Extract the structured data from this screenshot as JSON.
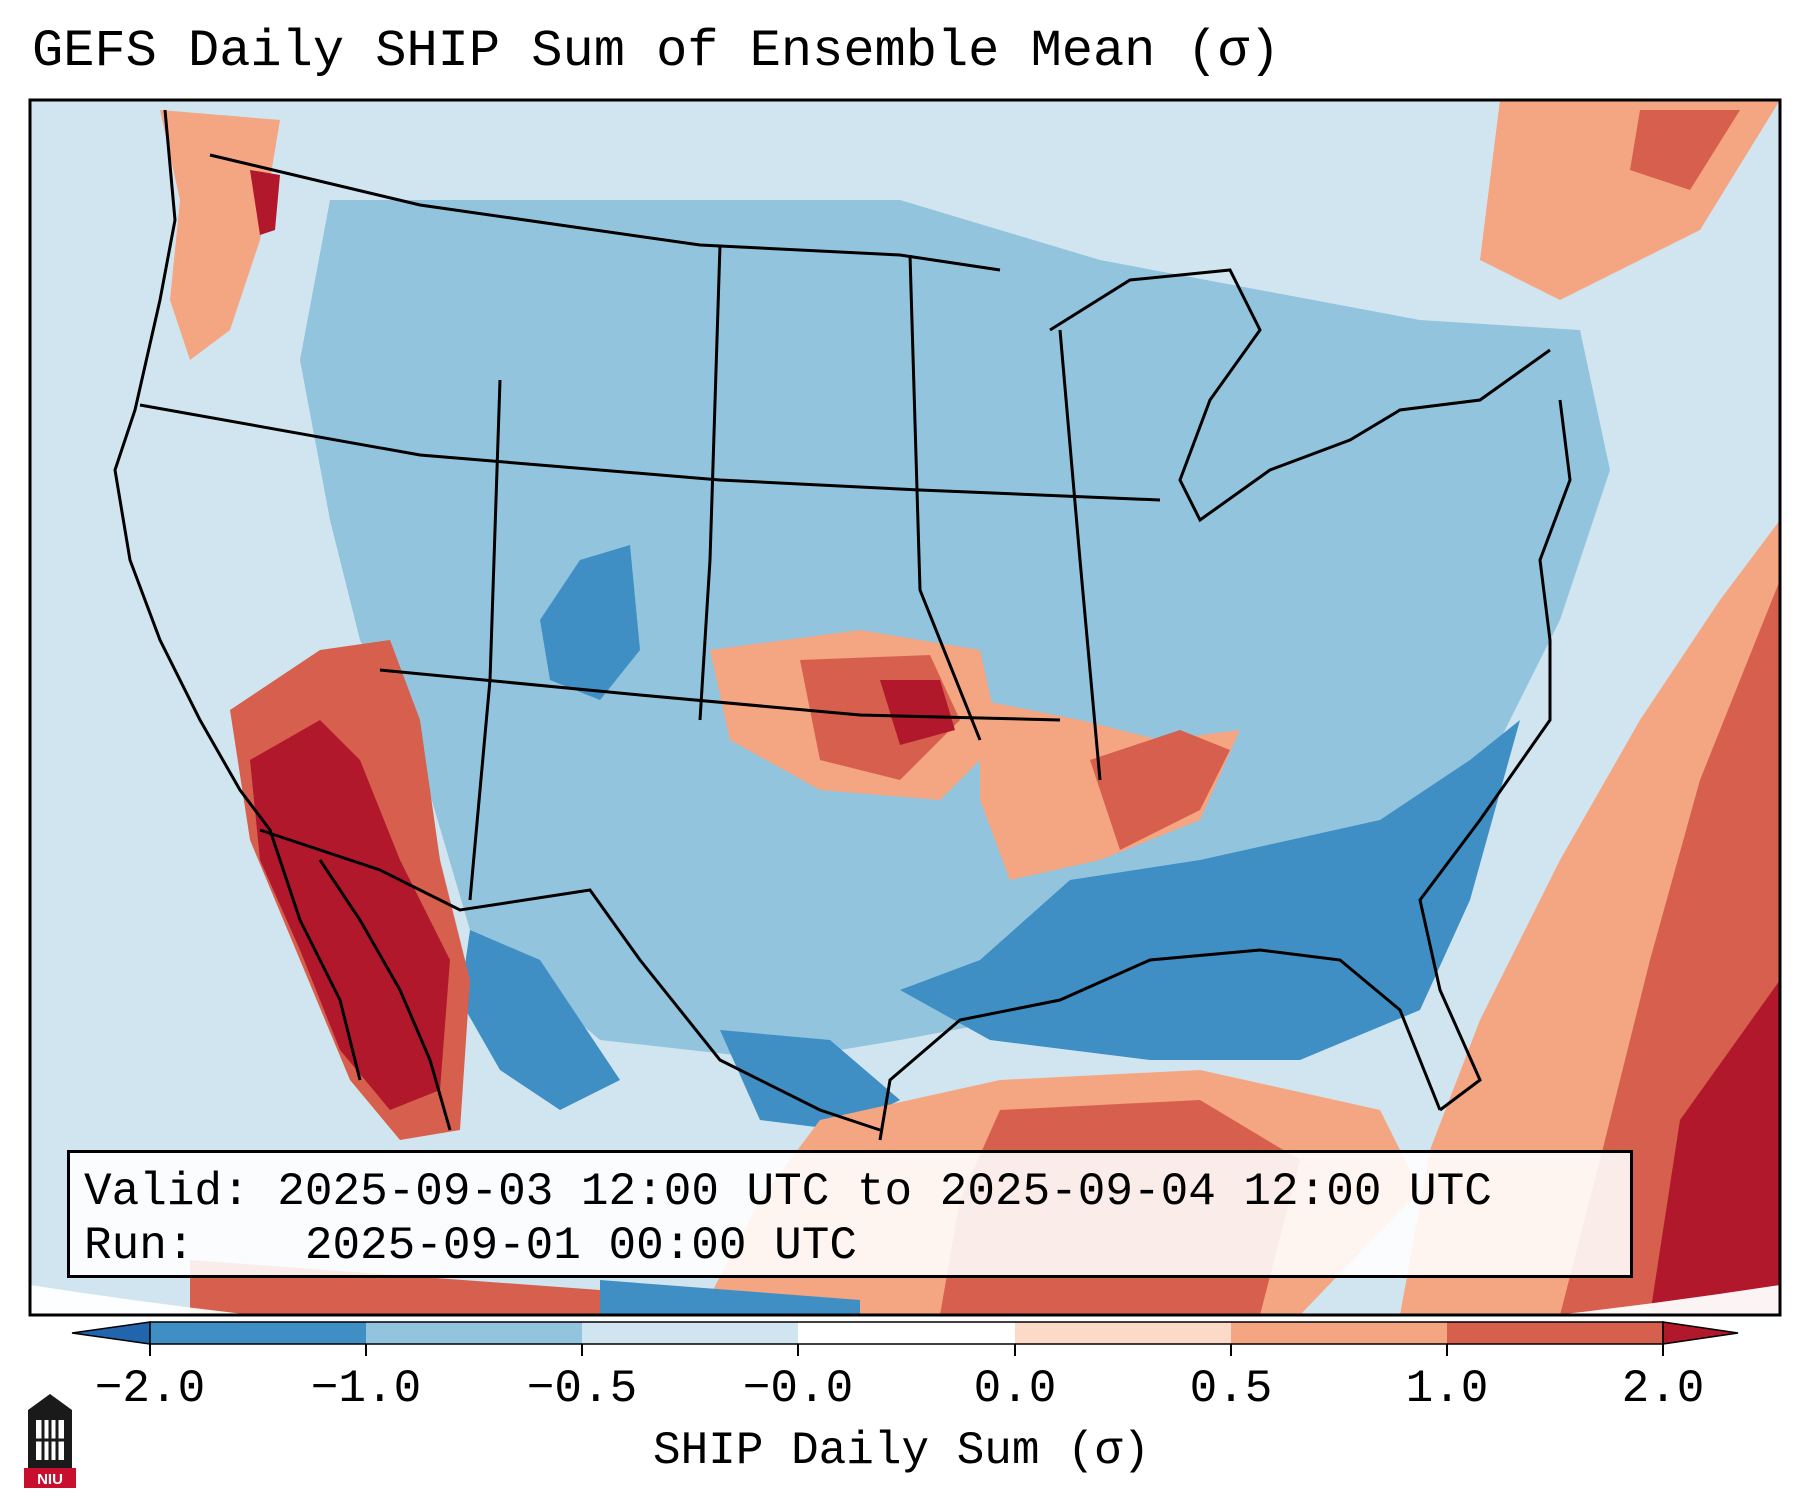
{
  "title": "GEFS Daily SHIP Sum of Ensemble Mean (σ)",
  "info": {
    "valid_label": "Valid:",
    "valid_value": "2025-09-03 12:00 UTC to 2025-09-04 12:00 UTC",
    "run_label": "Run:",
    "run_value": "2025-09-01 00:00 UTC"
  },
  "colorbar": {
    "label": "SHIP Daily Sum (σ)",
    "ticks": [
      "−2.0",
      "−1.0",
      "−0.5",
      "−0.0",
      "0.0",
      "0.5",
      "1.0",
      "2.0"
    ],
    "colors": [
      "#3f8fc4",
      "#92c4de",
      "#d1e5f0",
      "#fbdac8",
      "#f4a582",
      "#d6604d",
      "#b2182b"
    ],
    "extend_low_color": "#2166ac",
    "extend_high_color": "#b2182b"
  },
  "logo": {
    "text": "NIU"
  },
  "map": {
    "background_color": "#d1e5f0",
    "regions": [
      {
        "name": "southwest-high",
        "level": 2.0
      },
      {
        "name": "pacific-northwest-high",
        "level": 1.5
      },
      {
        "name": "kansas-oklahoma-high",
        "level": 1.0
      },
      {
        "name": "mississippi-valley-high",
        "level": 0.8
      },
      {
        "name": "atlantic-high",
        "level": 2.0
      },
      {
        "name": "gulf-of-mexico-high",
        "level": 1.0
      },
      {
        "name": "quebec-high",
        "level": 0.8
      },
      {
        "name": "interior-low",
        "level": -0.7
      },
      {
        "name": "gulf-coast-low",
        "level": -1.5
      },
      {
        "name": "colorado-low",
        "level": -1.5
      }
    ]
  }
}
